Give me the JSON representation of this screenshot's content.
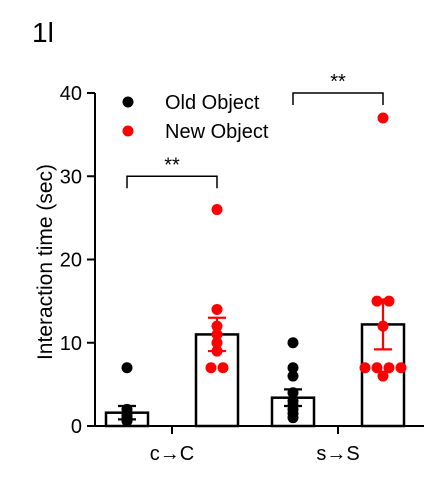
{
  "panel_label": "1l",
  "chart_data": {
    "type": "bar",
    "categories": [
      "c→C",
      "s→S"
    ],
    "ylabel": "Interaction time (sec)",
    "xlabel": "",
    "ylim": [
      0,
      40
    ],
    "yticks": [
      0,
      10,
      20,
      30,
      40
    ],
    "grid": false,
    "legend_position": "top-left",
    "series": [
      {
        "name": "Old Object",
        "color": "#000000",
        "bar_values": [
          1.6,
          3.4
        ],
        "error": [
          0.8,
          1.0
        ],
        "points": [
          [
            0.6,
            0.8,
            1.0,
            1.2,
            1.5,
            2.0,
            7.0
          ],
          [
            1.0,
            1.5,
            2.0,
            2.5,
            3.0,
            4.0,
            6.0,
            7.0,
            10.0
          ]
        ]
      },
      {
        "name": "New Object",
        "color": "#ff0000",
        "bar_values": [
          11.0,
          12.2
        ],
        "error": [
          2.0,
          3.0
        ],
        "points": [
          [
            7.0,
            7.0,
            9.0,
            10.0,
            11.0,
            12.0,
            14.0,
            26.0
          ],
          [
            6.0,
            7.0,
            7.0,
            7.0,
            7.0,
            12.0,
            15.0,
            15.0,
            37.0
          ]
        ]
      }
    ],
    "annotations": [
      {
        "text": "**",
        "group": 0,
        "bracket_y": 30
      },
      {
        "text": "**",
        "group": 1,
        "bracket_y": 40
      }
    ]
  }
}
